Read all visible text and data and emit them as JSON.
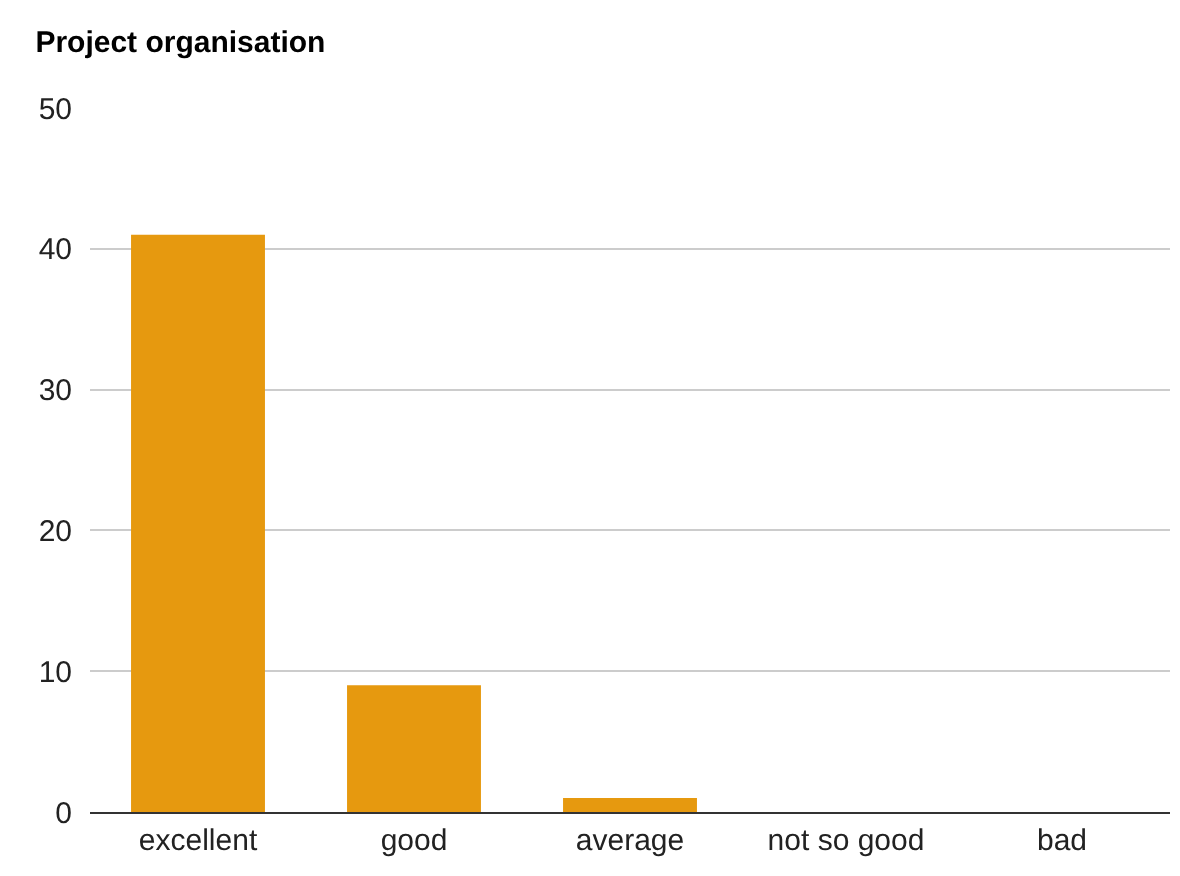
{
  "chart_data": {
    "type": "bar",
    "title": "Project organisation",
    "categories": [
      "excellent",
      "good",
      "average",
      "not so good",
      "bad"
    ],
    "values": [
      41,
      9,
      1,
      0,
      0
    ],
    "color": "#e6990f",
    "ylim": [
      0,
      50
    ],
    "yticks": [
      0,
      10,
      20,
      30,
      40,
      50
    ],
    "grid": "y"
  }
}
